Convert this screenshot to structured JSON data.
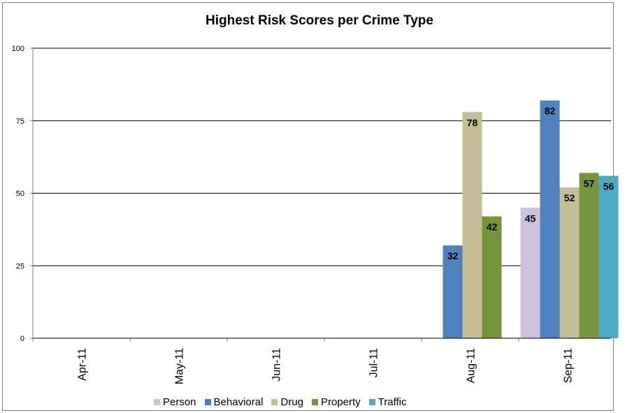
{
  "chart_data": {
    "type": "bar",
    "title": "Highest Risk Scores per Crime Type",
    "xlabel": "",
    "ylabel": "",
    "ylim": [
      0,
      100
    ],
    "yticks": [
      0,
      25,
      50,
      75,
      100
    ],
    "grid": true,
    "legend_position": "bottom",
    "categories": [
      "Apr-11",
      "May-11",
      "Jun-11",
      "Jul-11",
      "Aug-11",
      "Sep-11"
    ],
    "series": [
      {
        "name": "Person",
        "color": "#ccc1da",
        "values": [
          null,
          null,
          null,
          null,
          null,
          45
        ]
      },
      {
        "name": "Behavioral",
        "color": "#4f81bd",
        "values": [
          null,
          null,
          null,
          null,
          32,
          82
        ]
      },
      {
        "name": "Drug",
        "color": "#c4bd97",
        "values": [
          null,
          null,
          null,
          null,
          78,
          52
        ]
      },
      {
        "name": "Property",
        "color": "#77933c",
        "values": [
          null,
          null,
          null,
          null,
          42,
          57
        ]
      },
      {
        "name": "Traffic",
        "color": "#4bacc6",
        "values": [
          null,
          null,
          null,
          null,
          null,
          56
        ]
      }
    ]
  }
}
